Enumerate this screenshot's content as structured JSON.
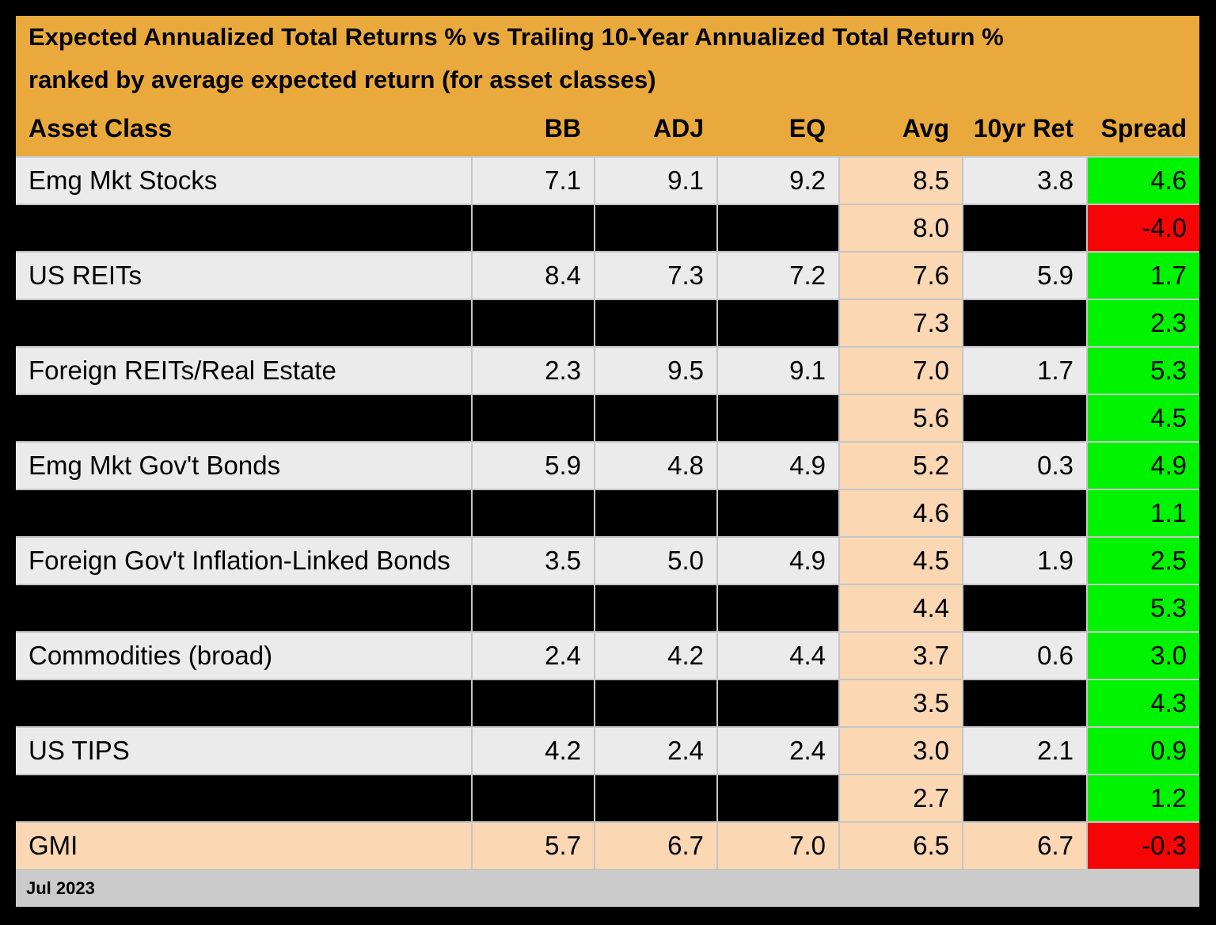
{
  "chart_data": {
    "type": "table",
    "title": "Expected Annualized Total Returns % vs Trailing 10-Year Annualized Total Return %",
    "subtitle": "ranked by average expected return (for asset classes)",
    "columns": [
      "Asset Class",
      "BB",
      "ADJ",
      "EQ",
      "Avg",
      "10yr Ret",
      "Spread"
    ],
    "rows": [
      {
        "asset": "Emg Mkt Stocks",
        "bb": "7.1",
        "adj": "9.1",
        "eq": "9.2",
        "avg": "8.5",
        "ret10": "3.8",
        "spread": "4.6",
        "masked": false,
        "summary": false
      },
      {
        "asset": null,
        "bb": null,
        "adj": null,
        "eq": null,
        "avg": "8.0",
        "ret10": null,
        "spread": "-4.0",
        "masked": true,
        "summary": false
      },
      {
        "asset": "US REITs",
        "bb": "8.4",
        "adj": "7.3",
        "eq": "7.2",
        "avg": "7.6",
        "ret10": "5.9",
        "spread": "1.7",
        "masked": false,
        "summary": false
      },
      {
        "asset": null,
        "bb": null,
        "adj": null,
        "eq": null,
        "avg": "7.3",
        "ret10": null,
        "spread": "2.3",
        "masked": true,
        "summary": false
      },
      {
        "asset": "Foreign REITs/Real Estate",
        "bb": "2.3",
        "adj": "9.5",
        "eq": "9.1",
        "avg": "7.0",
        "ret10": "1.7",
        "spread": "5.3",
        "masked": false,
        "summary": false
      },
      {
        "asset": null,
        "bb": null,
        "adj": null,
        "eq": null,
        "avg": "5.6",
        "ret10": null,
        "spread": "4.5",
        "masked": true,
        "summary": false
      },
      {
        "asset": "Emg Mkt Gov't Bonds",
        "bb": "5.9",
        "adj": "4.8",
        "eq": "4.9",
        "avg": "5.2",
        "ret10": "0.3",
        "spread": "4.9",
        "masked": false,
        "summary": false
      },
      {
        "asset": null,
        "bb": null,
        "adj": null,
        "eq": null,
        "avg": "4.6",
        "ret10": null,
        "spread": "1.1",
        "masked": true,
        "summary": false
      },
      {
        "asset": "Foreign Gov't Inflation-Linked Bonds",
        "bb": "3.5",
        "adj": "5.0",
        "eq": "4.9",
        "avg": "4.5",
        "ret10": "1.9",
        "spread": "2.5",
        "masked": false,
        "summary": false
      },
      {
        "asset": null,
        "bb": null,
        "adj": null,
        "eq": null,
        "avg": "4.4",
        "ret10": null,
        "spread": "5.3",
        "masked": true,
        "summary": false
      },
      {
        "asset": "Commodities (broad)",
        "bb": "2.4",
        "adj": "4.2",
        "eq": "4.4",
        "avg": "3.7",
        "ret10": "0.6",
        "spread": "3.0",
        "masked": false,
        "summary": false
      },
      {
        "asset": null,
        "bb": null,
        "adj": null,
        "eq": null,
        "avg": "3.5",
        "ret10": null,
        "spread": "4.3",
        "masked": true,
        "summary": false
      },
      {
        "asset": "US TIPS",
        "bb": "4.2",
        "adj": "2.4",
        "eq": "2.4",
        "avg": "3.0",
        "ret10": "2.1",
        "spread": "0.9",
        "masked": false,
        "summary": false
      },
      {
        "asset": null,
        "bb": null,
        "adj": null,
        "eq": null,
        "avg": "2.7",
        "ret10": null,
        "spread": "1.2",
        "masked": true,
        "summary": false
      },
      {
        "asset": "GMI",
        "bb": "5.7",
        "adj": "6.7",
        "eq": "7.0",
        "avg": "6.5",
        "ret10": "6.7",
        "spread": "-0.3",
        "masked": false,
        "summary": true
      }
    ],
    "as_of": "Jul 2023",
    "legend_position": "none",
    "grid": true
  },
  "colors": {
    "header_gold": "#E9A93C",
    "row_light": "#EBEBEB",
    "avg_peach": "#FBD7B3",
    "positive_green": "#00F300",
    "negative_red": "#F50505",
    "masked_black": "#000000",
    "gridline_gray": "#C6C6C6",
    "footer_gray": "#CBCBCB"
  }
}
